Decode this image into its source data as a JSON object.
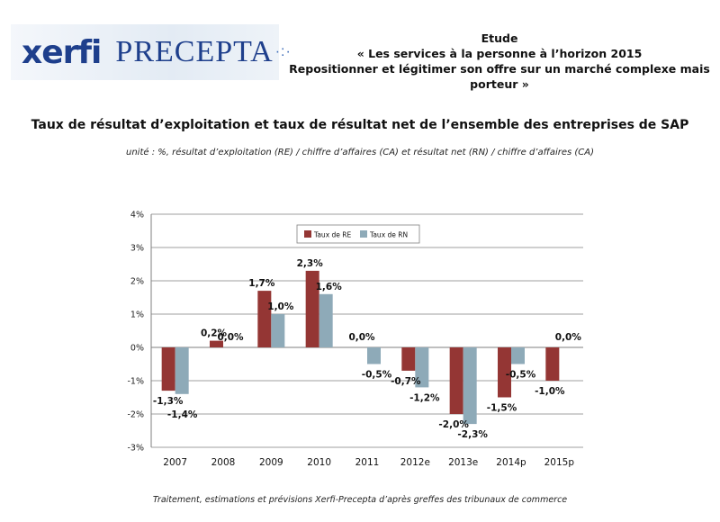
{
  "header": {
    "logo_left": "xerfi",
    "logo_right": "PRECEPTA",
    "logo_dots": "·:·",
    "study_label": "Etude",
    "study_title": "« Les services à la personne à l’horizon 2015",
    "study_subtitle": "Repositionner et légitimer son offre sur un marché complexe mais porteur »"
  },
  "footer": {
    "source": "Traitement, estimations et prévisions Xerfi-Precepta d’après greffes des tribunaux de commerce"
  },
  "chart_data": {
    "type": "bar",
    "title": "Taux de résultat d’exploitation et taux de résultat net de l’ensemble des entreprises de SAP",
    "subtitle": "unité : %, résultat d’exploitation (RE) / chiffre d’affaires (CA) et résultat net (RN) / chiffre d’affaires (CA)",
    "categories": [
      "2007",
      "2008",
      "2009",
      "2010",
      "2011",
      "2012e",
      "2013e",
      "2014p",
      "2015p"
    ],
    "series": [
      {
        "name": "Taux de RE",
        "color": "#943634",
        "values": [
          -1.3,
          0.2,
          1.7,
          2.3,
          0.0,
          -0.7,
          -2.0,
          -1.5,
          -1.0
        ],
        "labels": [
          "-1,3%",
          "0,2%",
          "1,7%",
          "2,3%",
          "0,0%",
          "-0,7%",
          "-2,0%",
          "-1,5%",
          "-1,0%"
        ]
      },
      {
        "name": "Taux de RN",
        "color": "#8eaab8",
        "values": [
          -1.4,
          0.0,
          1.0,
          1.6,
          -0.5,
          -1.2,
          -2.3,
          -0.5,
          0.0
        ],
        "labels": [
          "-1,4%",
          "0,0%",
          "1,0%",
          "1,6%",
          "-0,5%",
          "-1,2%",
          "-2,3%",
          "-0,5%",
          "0,0%"
        ]
      }
    ],
    "ylim": [
      -3,
      4
    ],
    "yticks": [
      4,
      3,
      2,
      1,
      0,
      -1,
      -2,
      -3
    ],
    "ytick_labels": [
      "4%",
      "3%",
      "2%",
      "1%",
      "0%",
      "-1%",
      "-2%",
      "-3%"
    ],
    "grid": true,
    "legend_position": "top"
  }
}
